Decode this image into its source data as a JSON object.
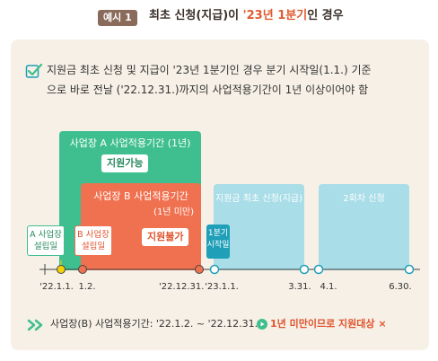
{
  "header": {
    "badge": "예시 1",
    "title_pre": "최초 신청(지급)이 ",
    "title_highlight": "'23년 1분기",
    "title_post": "인 경우"
  },
  "description": {
    "line1": "지원금 최초 신청 및 지급이 '23년 1분기인 경우 분기 시작일(1.1.) 기준",
    "line2": "으로 바로 전날 ('22.12.31.)까지의 사업적용기간이 1년 이상이어야 함"
  },
  "diagram": {
    "green_title": "사업장 A 사업적용기간 (1년)",
    "green_status": "지원가능",
    "orange_title": "사업장 B 사업적용기간",
    "orange_subtitle": "(1년 미만)",
    "orange_status": "지원불가",
    "blue1_label": "지원금 최초 신청(지급)",
    "blue2_label": "2회차 신청",
    "quarter_line1": "1분기",
    "quarter_line2": "시작일",
    "marker_a_line1": "A 사업장",
    "marker_a_line2": "설립일",
    "marker_b_line1": "B 사업장",
    "marker_b_line2": "설립일",
    "ticks": [
      "'22.1.1.",
      "1.2.",
      "'22.12.31.",
      "'23.1.1.",
      "3.31.",
      "4.1.",
      "6.30."
    ],
    "colors": {
      "green": "#3fbf8f",
      "orange": "#f07150",
      "blue": "#a9dde8",
      "quarter": "#1f9fb8",
      "yellow_dot": "#f5d300"
    }
  },
  "footer": {
    "text": "사업장(B) 사업적용기간: '22.1.2. ~ '22.12.31.",
    "result": "1년 미만이므로 지원대상 ×"
  }
}
